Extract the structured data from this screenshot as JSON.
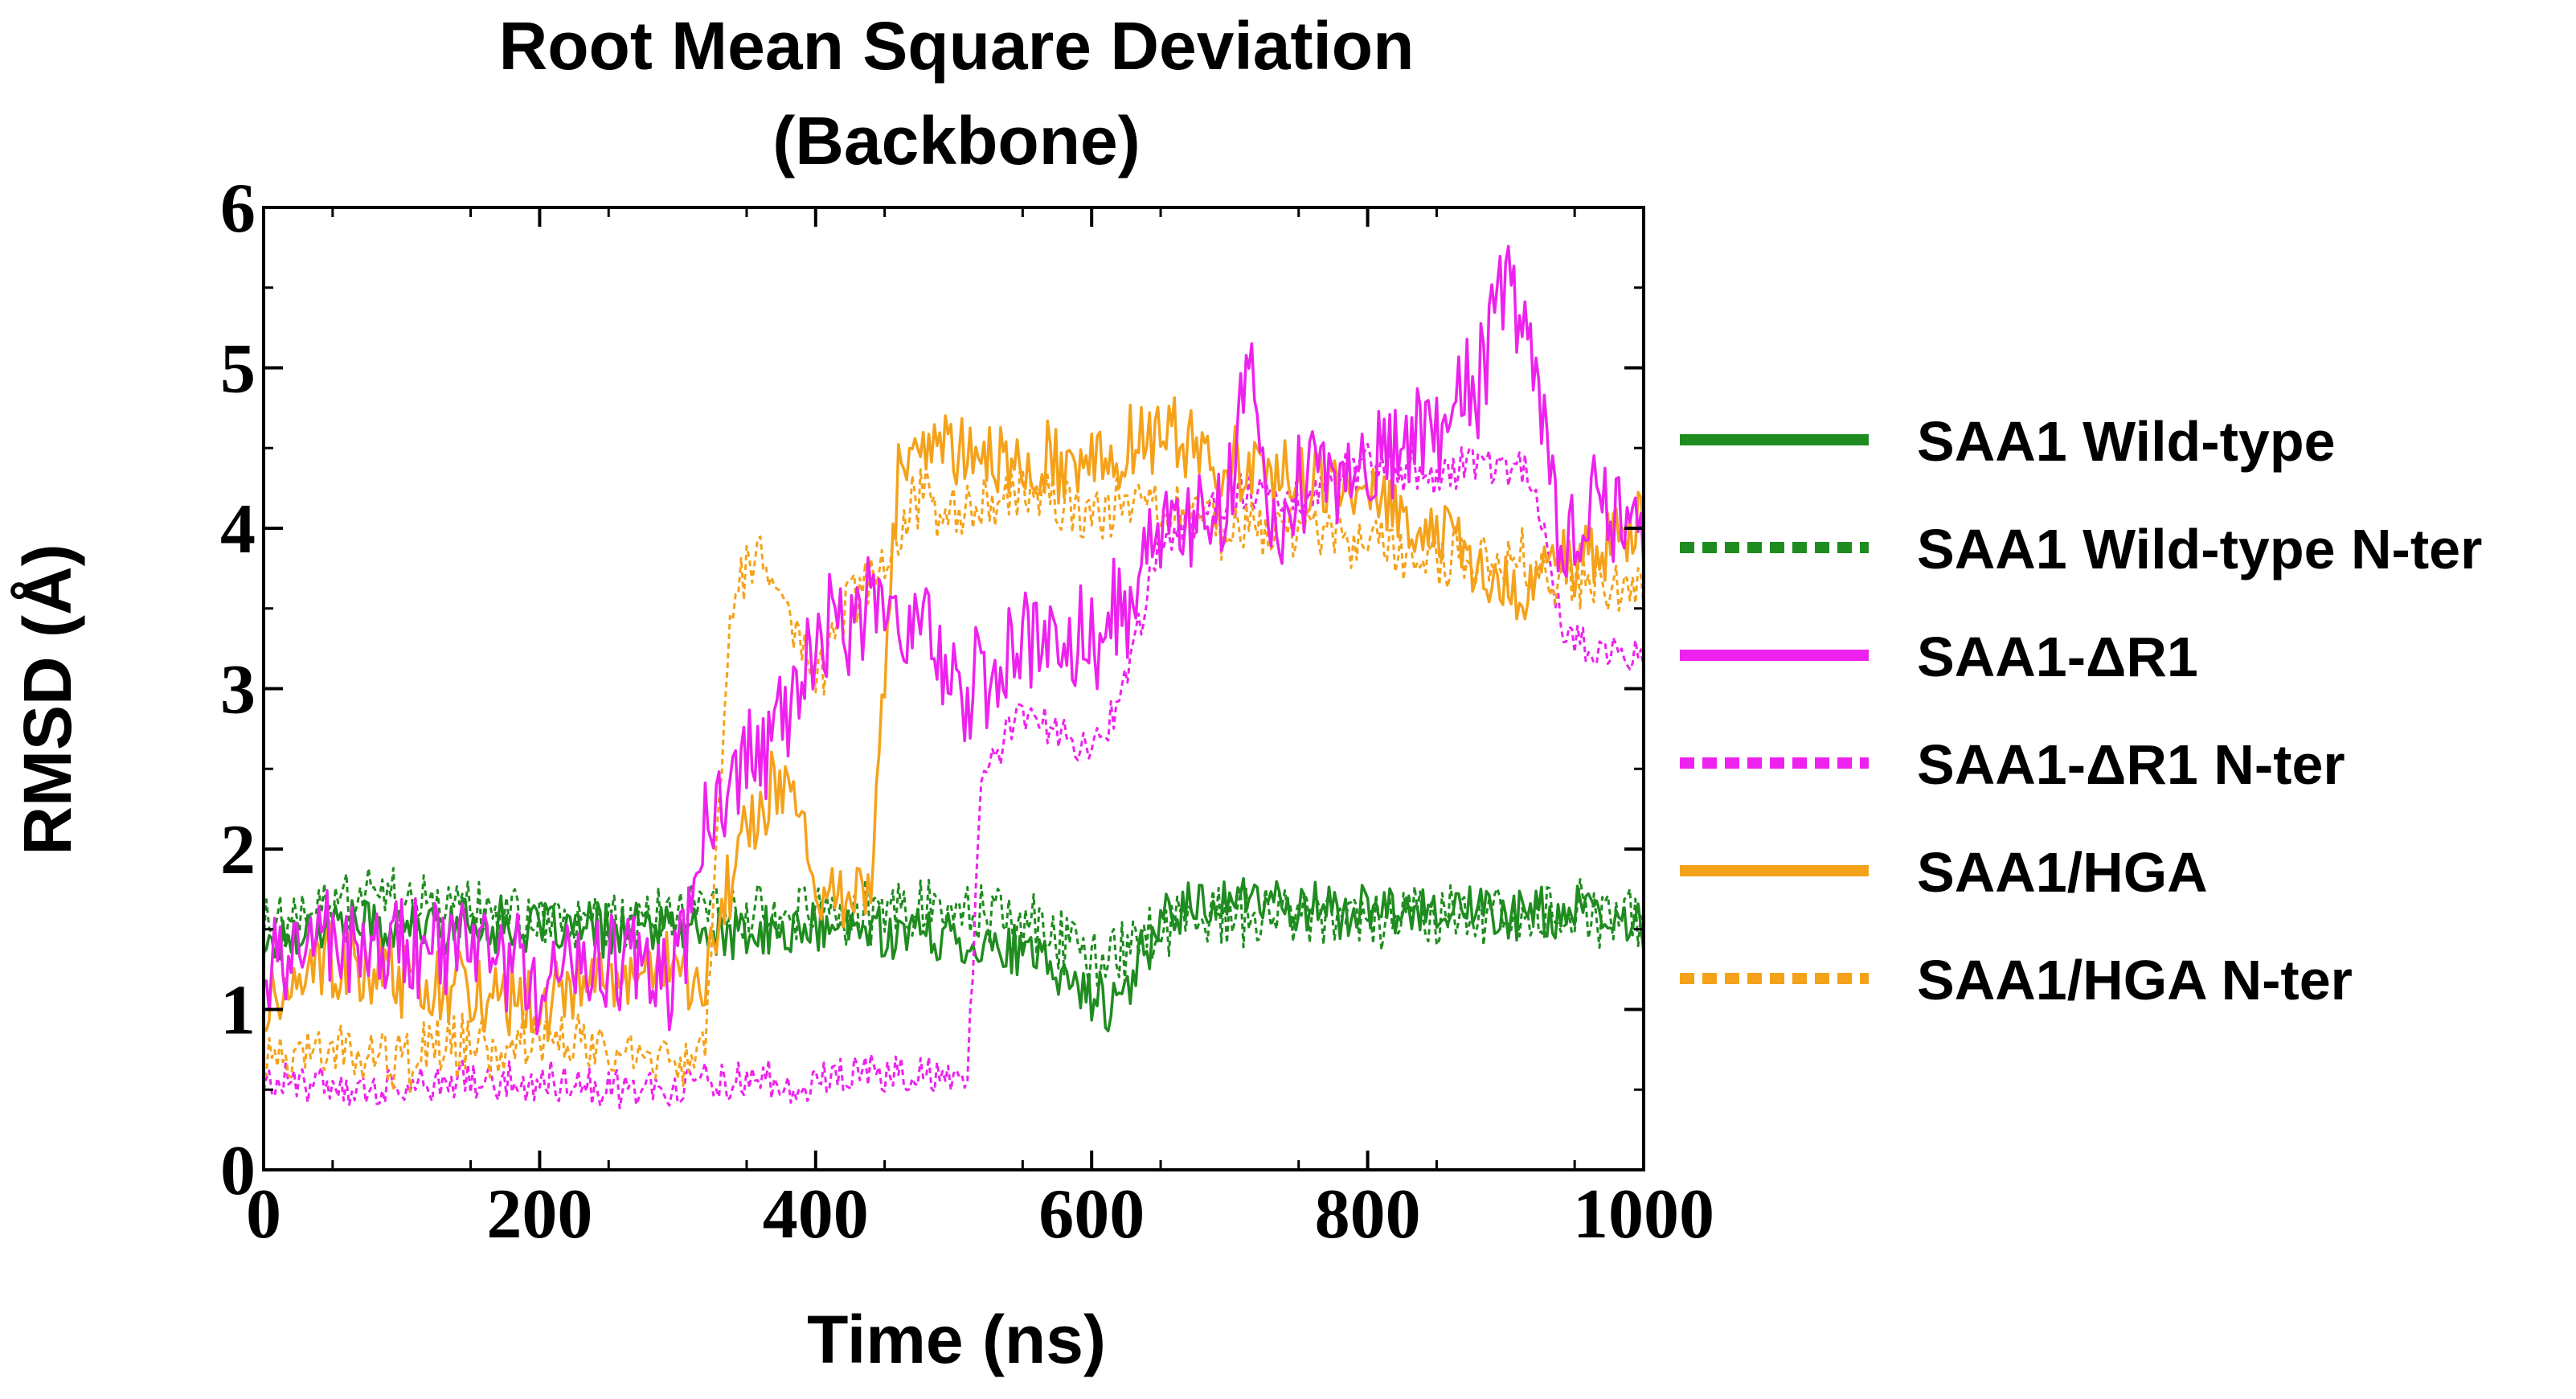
{
  "chart_data": {
    "type": "line",
    "title": "Root Mean Square Deviation",
    "subtitle": "(Backbone)",
    "xlabel": "Time (ns)",
    "ylabel": "RMSD (Å)",
    "xlim": [
      0,
      1000
    ],
    "ylim": [
      0,
      6
    ],
    "xticks": [
      0,
      200,
      400,
      600,
      800,
      1000
    ],
    "yticks": [
      0,
      1,
      2,
      3,
      4,
      5,
      6
    ],
    "grid": false,
    "legend_position": "right",
    "series": [
      {
        "name": "SAA1 Wild-type",
        "color": "#1f8c1f",
        "dash": "solid",
        "x": [
          0,
          50,
          100,
          150,
          200,
          250,
          300,
          350,
          400,
          450,
          500,
          550,
          600,
          620,
          650,
          700,
          750,
          800,
          850,
          900,
          950,
          1000
        ],
        "y": [
          1.4,
          1.55,
          1.5,
          1.55,
          1.5,
          1.5,
          1.5,
          1.45,
          1.5,
          1.5,
          1.45,
          1.35,
          1.1,
          1.0,
          1.6,
          1.7,
          1.65,
          1.6,
          1.65,
          1.6,
          1.6,
          1.5
        ],
        "noise": 0.15
      },
      {
        "name": "SAA1 Wild-type N-ter",
        "color": "#1f8c1f",
        "dash": "dotted",
        "x": [
          0,
          50,
          100,
          150,
          200,
          250,
          300,
          350,
          400,
          450,
          500,
          550,
          600,
          620,
          650,
          700,
          750,
          800,
          850,
          900,
          950,
          1000
        ],
        "y": [
          1.5,
          1.7,
          1.65,
          1.6,
          1.55,
          1.55,
          1.6,
          1.55,
          1.55,
          1.6,
          1.65,
          1.55,
          1.35,
          1.3,
          1.5,
          1.6,
          1.6,
          1.5,
          1.6,
          1.55,
          1.6,
          1.55
        ],
        "noise": 0.18
      },
      {
        "name": "SAA1-ΔR1",
        "color": "#ee22ee",
        "dash": "solid",
        "x": [
          0,
          50,
          100,
          150,
          200,
          250,
          300,
          320,
          350,
          380,
          400,
          420,
          450,
          480,
          500,
          530,
          560,
          600,
          630,
          650,
          680,
          700,
          715,
          730,
          760,
          800,
          850,
          880,
          900,
          920,
          940,
          970,
          1000
        ],
        "y": [
          1.3,
          1.45,
          1.35,
          1.4,
          1.2,
          1.3,
          1.2,
          2.2,
          2.6,
          2.8,
          3.3,
          3.4,
          3.6,
          3.3,
          3.0,
          3.1,
          3.4,
          3.3,
          3.6,
          4.1,
          4.0,
          4.3,
          5.2,
          4.1,
          4.3,
          4.4,
          4.6,
          4.9,
          5.6,
          5.1,
          3.9,
          4.2,
          4.0
        ],
        "noise": 0.3
      },
      {
        "name": "SAA1-ΔR1 N-ter",
        "color": "#ee22ee",
        "dash": "dotted",
        "x": [
          0,
          50,
          100,
          150,
          200,
          250,
          300,
          320,
          350,
          400,
          450,
          500,
          510,
          520,
          550,
          600,
          620,
          650,
          700,
          750,
          800,
          850,
          870,
          900,
          920,
          940,
          970,
          1000
        ],
        "y": [
          0.55,
          0.55,
          0.5,
          0.55,
          0.55,
          0.5,
          0.5,
          0.55,
          0.55,
          0.55,
          0.6,
          0.55,
          0.5,
          2.4,
          2.9,
          2.6,
          2.9,
          3.9,
          4.2,
          4.2,
          4.4,
          4.3,
          4.4,
          4.4,
          4.3,
          3.4,
          3.2,
          3.2
        ],
        "noise": 0.12
      },
      {
        "name": "SAA1/HGA",
        "color": "#f5a21b",
        "dash": "solid",
        "x": [
          0,
          50,
          100,
          150,
          200,
          250,
          300,
          320,
          350,
          380,
          400,
          420,
          440,
          460,
          500,
          550,
          600,
          650,
          700,
          750,
          800,
          850,
          900,
          950,
          1000
        ],
        "y": [
          1.0,
          1.3,
          1.2,
          1.1,
          1.0,
          1.2,
          1.3,
          1.2,
          2.2,
          2.5,
          1.8,
          1.7,
          1.7,
          4.4,
          4.5,
          4.4,
          4.4,
          4.6,
          4.4,
          4.3,
          4.2,
          4.0,
          3.6,
          3.8,
          4.1
        ],
        "noise": 0.22
      },
      {
        "name": "SAA1/HGA N-ter",
        "color": "#f5a21b",
        "dash": "dotted",
        "x": [
          0,
          50,
          100,
          150,
          200,
          250,
          300,
          320,
          340,
          360,
          380,
          400,
          420,
          450,
          470,
          500,
          550,
          600,
          650,
          700,
          750,
          800,
          850,
          900,
          950,
          1000
        ],
        "y": [
          0.6,
          0.7,
          0.7,
          0.8,
          0.8,
          0.8,
          0.7,
          0.8,
          3.6,
          3.8,
          3.4,
          3.0,
          3.5,
          3.8,
          4.2,
          4.1,
          4.2,
          4.1,
          4.2,
          4.0,
          4.0,
          3.9,
          3.8,
          3.8,
          3.7,
          3.6
        ],
        "noise": 0.18
      }
    ]
  }
}
